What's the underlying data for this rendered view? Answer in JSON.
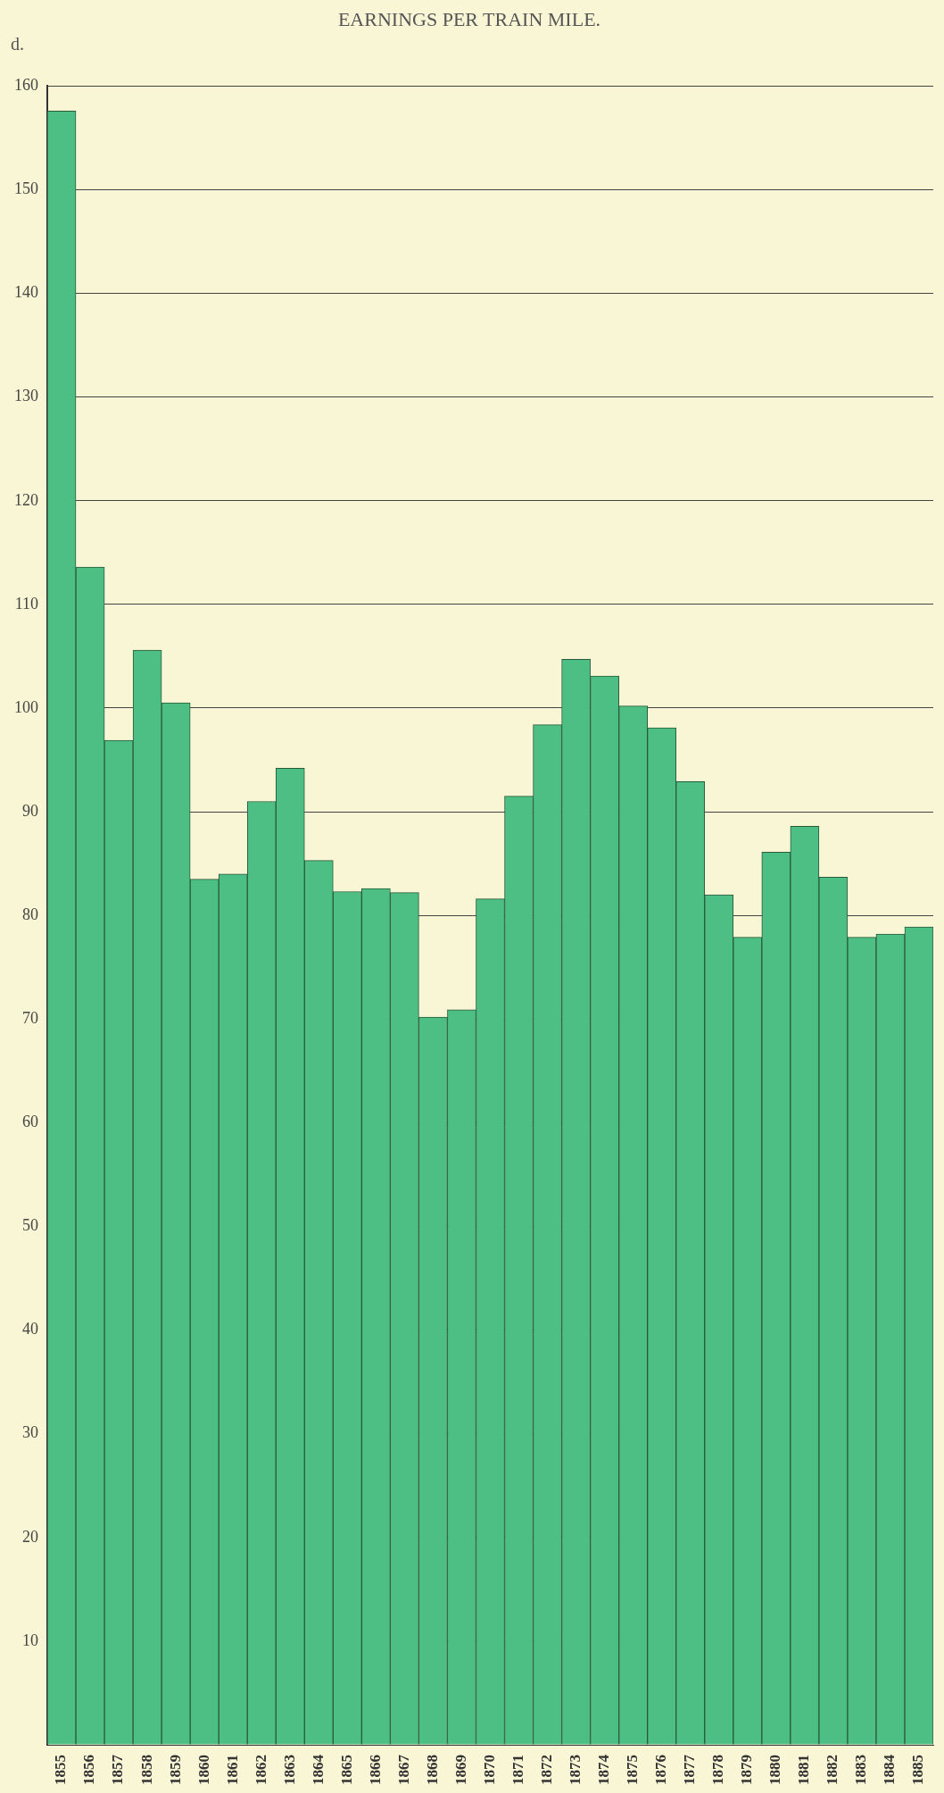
{
  "chart_data": {
    "type": "bar",
    "title": "EARNINGS PER TRAIN MILE.",
    "ylabel": "d.",
    "categories": [
      "1855",
      "1856",
      "1857",
      "1858",
      "1859",
      "1860",
      "1861",
      "1862",
      "1863",
      "1864",
      "1865",
      "1866",
      "1867",
      "1868",
      "1869",
      "1870",
      "1871",
      "1872",
      "1873",
      "1874",
      "1875",
      "1876",
      "1877",
      "1878",
      "1879",
      "1880",
      "1881",
      "1882",
      "1883",
      "1884",
      "1885"
    ],
    "values": [
      157.6,
      113.6,
      96.9,
      105.6,
      100.5,
      83.5,
      84.0,
      91.0,
      94.2,
      85.3,
      82.3,
      82.6,
      82.2,
      70.2,
      70.9,
      81.6,
      91.5,
      98.4,
      104.7,
      103.1,
      100.2,
      98.1,
      92.9,
      82.0,
      77.9,
      86.1,
      88.6,
      83.7,
      77.9,
      78.2,
      78.9
    ],
    "color": "#4dbf85",
    "ylim": [
      0,
      160
    ],
    "yticks": [
      {
        "value": 0,
        "label": null
      },
      10,
      20,
      30,
      40,
      50,
      60,
      70,
      80,
      90,
      100,
      110,
      120,
      130,
      140,
      150,
      160
    ],
    "grid": "y",
    "legend": false
  }
}
